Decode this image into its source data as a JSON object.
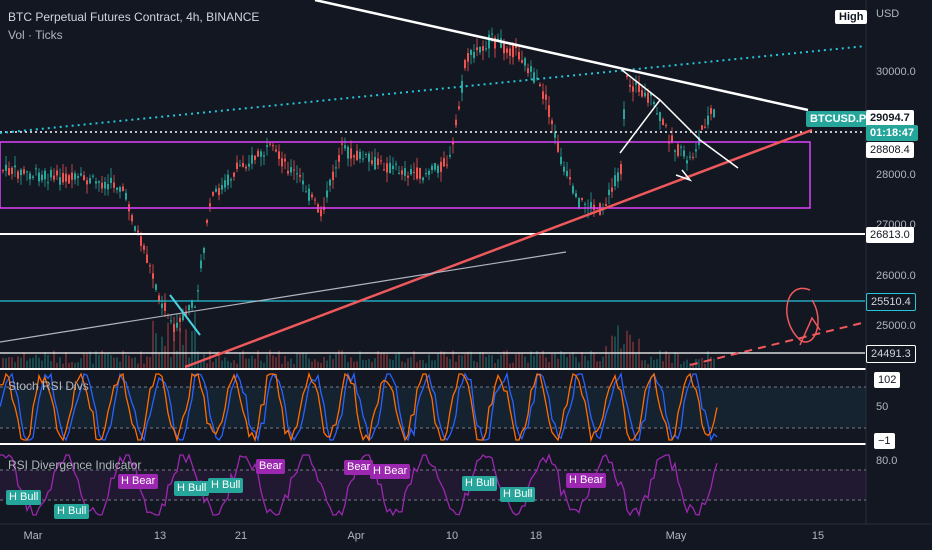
{
  "header": {
    "title": "BTC Perpetual Futures Contract, 4h, BINANCE",
    "subtitle": "Vol · Ticks",
    "currency": "USD",
    "high_button": "High"
  },
  "price_axis": {
    "ticks": [
      "30000.0",
      "28000.0",
      "27000.0",
      "26000.0",
      "25000.0"
    ],
    "levels": {
      "l28808": "28808.4",
      "l26813": "26813.0",
      "l25510": "25510.4",
      "l24491": "24491.3"
    }
  },
  "last_price": {
    "symbol": "BTCUSD.P",
    "price": "29094.7",
    "countdown": "01:18:47"
  },
  "stoch_pane": {
    "title": "Stoch RSI Divs",
    "ticks": [
      "102",
      "50",
      "−1"
    ]
  },
  "rsi_pane": {
    "title": "RSI Divergence Indicator",
    "tick": "80.0",
    "labels": [
      "H Bull",
      "H Bull",
      "H Bear",
      "H Bull",
      "H Bull",
      "Bear",
      "Bear",
      "H Bear",
      "H Bull",
      "H Bull",
      "H Bear"
    ]
  },
  "time_axis": {
    "labels": [
      "Mar",
      "13",
      "21",
      "Apr",
      "10",
      "18",
      "May",
      "15"
    ]
  },
  "colors": {
    "background": "#131722",
    "up": "#26a69a",
    "down": "#ef5350",
    "box": "#e040fb",
    "trend_red": "#f0595c",
    "teal_dotted": "#26c6da",
    "stoch_k": "#2962ff",
    "stoch_d": "#ff6d00",
    "rsi_line": "#9c27b0"
  }
}
